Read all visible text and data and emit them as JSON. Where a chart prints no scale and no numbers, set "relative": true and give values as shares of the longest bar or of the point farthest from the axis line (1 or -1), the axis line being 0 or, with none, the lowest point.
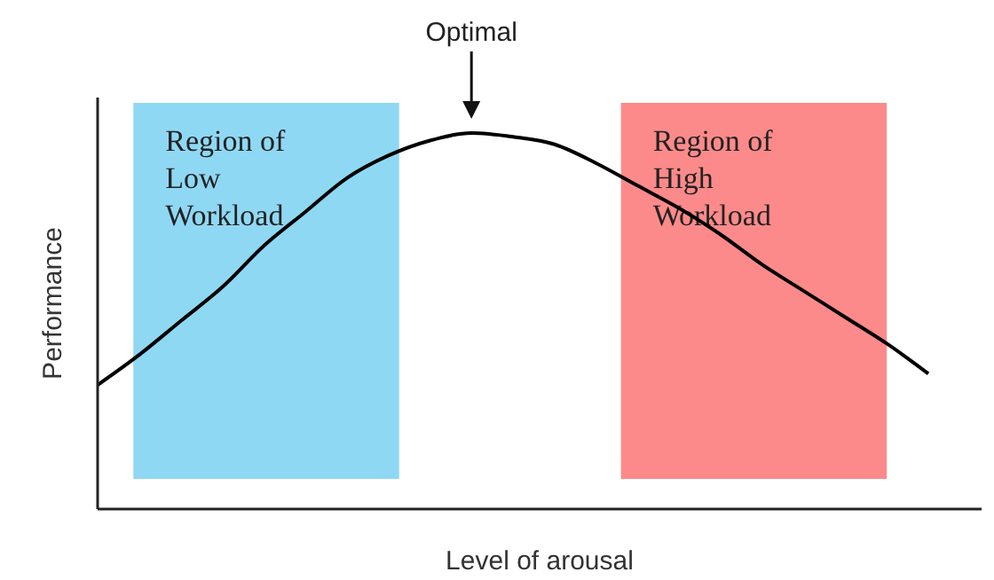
{
  "chart_data": {
    "type": "line",
    "relative": true,
    "xlabel": "Level of arousal",
    "ylabel": "Performance",
    "categories": [
      null,
      null,
      null,
      null,
      null,
      null,
      null,
      null,
      null,
      null,
      null,
      null,
      null,
      null,
      null,
      null,
      null,
      null,
      null,
      null,
      null
    ],
    "series": [
      {
        "color": "#000000",
        "values": [
          0.33,
          0.41,
          0.5,
          0.59,
          0.7,
          0.79,
          0.88,
          0.94,
          0.98,
          1,
          0.99,
          0.97,
          0.92,
          0.86,
          0.8,
          0.73,
          0.65,
          0.58,
          0.51,
          0.44,
          0.36
        ]
      }
    ],
    "annotations": [
      "Optimal",
      "Region of\nLow\nWorkload",
      "Region of\nHigh\nWorkload"
    ],
    "grid": false,
    "legend": false,
    "marker": "none",
    "line_style": "solid"
  }
}
